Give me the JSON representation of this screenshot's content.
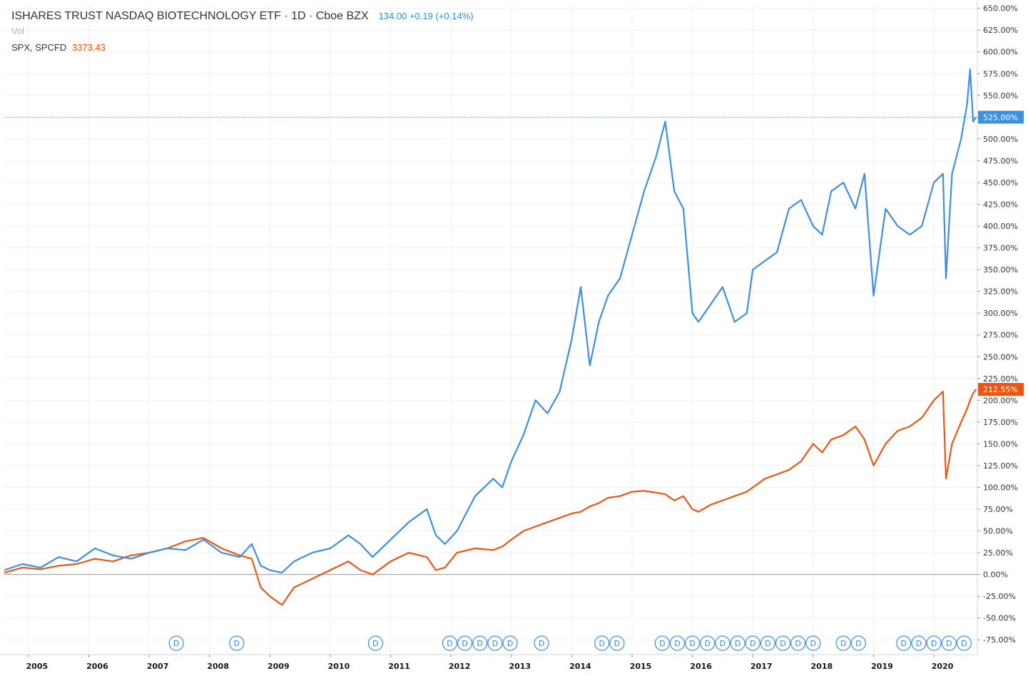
{
  "legend": {
    "title": "ISHARES TRUST NASDAQ BIOTECHNOLOGY ETF · 1D · Cboe BZX",
    "price": "134.00",
    "change": "+0.19 (+0.14%)",
    "vol_label": "Vol",
    "compare_symbol": "SPX, SPCFD",
    "compare_value": "3373.43"
  },
  "colors": {
    "ibb": "#3d8fe0",
    "spx": "#ef5412",
    "grid": "#eef0f3",
    "axis": "#c8cbd3"
  },
  "chart_data": {
    "type": "line",
    "title": "ISHARES TRUST NASDAQ BIOTECHNOLOGY ETF",
    "xlabel": "",
    "ylabel": "",
    "ylim": [
      -92,
      653
    ],
    "xlim": [
      2004.6,
      2020.72
    ],
    "y_ticks": [
      650,
      625,
      600,
      575,
      550,
      525,
      500,
      475,
      450,
      425,
      400,
      375,
      350,
      325,
      300,
      275,
      250,
      225,
      200,
      175,
      150,
      125,
      100,
      75,
      50,
      25,
      0,
      -25,
      -50,
      -75
    ],
    "y_tick_labels": [
      "650.00%",
      "625.00%",
      "600.00%",
      "575.00%",
      "550.00%",
      "525.00%",
      "500.00%",
      "475.00%",
      "450.00%",
      "425.00%",
      "400.00%",
      "375.00%",
      "350.00%",
      "325.00%",
      "300.00%",
      "275.00%",
      "250.00%",
      "225.00%",
      "200.00%",
      "175.00%",
      "150.00%",
      "125.00%",
      "100.00%",
      "75.00%",
      "50.00%",
      "25.00%",
      "0.00%",
      "-25.00%",
      "-50.00%",
      "-75.00%"
    ],
    "x_ticks": [
      2005,
      2006,
      2007,
      2008,
      2009,
      2010,
      2011,
      2012,
      2013,
      2014,
      2015,
      2016,
      2017,
      2018,
      2019,
      2020
    ],
    "x_tick_labels": [
      "2005",
      "2006",
      "2007",
      "2008",
      "2009",
      "2010",
      "2011",
      "2012",
      "2013",
      "2014",
      "2015",
      "2016",
      "2017",
      "2018",
      "2019",
      "2020"
    ],
    "series": [
      {
        "name": "ISHARES TRUST NASDAQ BIOTECHNOLOGY ETF",
        "last_label": "525.00%",
        "last_value": 525,
        "x": [
          2004.6,
          2004.9,
          2005.2,
          2005.5,
          2005.8,
          2006.1,
          2006.4,
          2006.7,
          2007.0,
          2007.3,
          2007.6,
          2007.9,
          2008.2,
          2008.5,
          2008.7,
          2008.85,
          2009.0,
          2009.2,
          2009.4,
          2009.7,
          2010.0,
          2010.3,
          2010.5,
          2010.7,
          2011.0,
          2011.3,
          2011.6,
          2011.75,
          2011.9,
          2012.1,
          2012.4,
          2012.7,
          2012.85,
          2013.0,
          2013.2,
          2013.4,
          2013.6,
          2013.8,
          2014.0,
          2014.15,
          2014.3,
          2014.45,
          2014.6,
          2014.8,
          2015.0,
          2015.2,
          2015.4,
          2015.55,
          2015.7,
          2015.85,
          2016.0,
          2016.1,
          2016.3,
          2016.5,
          2016.7,
          2016.9,
          2017.0,
          2017.2,
          2017.4,
          2017.6,
          2017.8,
          2018.0,
          2018.15,
          2018.3,
          2018.5,
          2018.7,
          2018.85,
          2019.0,
          2019.2,
          2019.4,
          2019.6,
          2019.8,
          2020.0,
          2020.15,
          2020.2,
          2020.3,
          2020.45,
          2020.55,
          2020.6,
          2020.65,
          2020.7
        ],
        "values": [
          5,
          12,
          8,
          20,
          15,
          30,
          22,
          18,
          25,
          30,
          28,
          40,
          25,
          20,
          35,
          10,
          5,
          2,
          15,
          25,
          30,
          45,
          35,
          20,
          40,
          60,
          75,
          45,
          35,
          50,
          90,
          110,
          100,
          130,
          160,
          200,
          185,
          210,
          270,
          330,
          240,
          290,
          320,
          340,
          390,
          440,
          480,
          520,
          440,
          420,
          300,
          290,
          310,
          330,
          290,
          300,
          350,
          360,
          370,
          420,
          430,
          400,
          390,
          440,
          450,
          420,
          460,
          320,
          420,
          400,
          390,
          400,
          450,
          460,
          340,
          460,
          500,
          540,
          580,
          520,
          525
        ]
      },
      {
        "name": "SPX, SPCFD",
        "last_label": "212.55%",
        "last_value": 212.55,
        "x": [
          2004.6,
          2004.9,
          2005.2,
          2005.5,
          2005.8,
          2006.1,
          2006.4,
          2006.7,
          2007.0,
          2007.3,
          2007.6,
          2007.9,
          2008.2,
          2008.5,
          2008.7,
          2008.85,
          2009.0,
          2009.2,
          2009.4,
          2009.7,
          2010.0,
          2010.3,
          2010.5,
          2010.7,
          2011.0,
          2011.3,
          2011.6,
          2011.75,
          2011.9,
          2012.1,
          2012.4,
          2012.7,
          2012.85,
          2013.0,
          2013.2,
          2013.4,
          2013.6,
          2013.8,
          2014.0,
          2014.15,
          2014.3,
          2014.45,
          2014.6,
          2014.8,
          2015.0,
          2015.2,
          2015.4,
          2015.55,
          2015.7,
          2015.85,
          2016.0,
          2016.1,
          2016.3,
          2016.5,
          2016.7,
          2016.9,
          2017.0,
          2017.2,
          2017.4,
          2017.6,
          2017.8,
          2018.0,
          2018.15,
          2018.3,
          2018.5,
          2018.7,
          2018.85,
          2019.0,
          2019.2,
          2019.4,
          2019.6,
          2019.8,
          2020.0,
          2020.15,
          2020.2,
          2020.3,
          2020.45,
          2020.55,
          2020.6,
          2020.65,
          2020.7
        ],
        "values": [
          2,
          8,
          6,
          10,
          12,
          18,
          15,
          22,
          25,
          30,
          38,
          42,
          30,
          22,
          18,
          -15,
          -25,
          -35,
          -15,
          -5,
          5,
          15,
          5,
          0,
          15,
          25,
          20,
          5,
          8,
          25,
          30,
          28,
          32,
          40,
          50,
          55,
          60,
          65,
          70,
          72,
          78,
          82,
          88,
          90,
          95,
          96,
          94,
          92,
          85,
          90,
          75,
          72,
          80,
          85,
          90,
          95,
          100,
          110,
          115,
          120,
          130,
          150,
          140,
          155,
          160,
          170,
          155,
          125,
          150,
          165,
          170,
          180,
          200,
          210,
          110,
          150,
          175,
          190,
          200,
          208,
          212.55
        ]
      }
    ],
    "dividend_markers": {
      "label": "D",
      "x": [
        2007.45,
        2008.45,
        2010.75,
        2011.98,
        2012.23,
        2012.48,
        2012.73,
        2012.98,
        2013.5,
        2014.5,
        2014.75,
        2015.5,
        2015.75,
        2016.0,
        2016.25,
        2016.5,
        2016.75,
        2017.0,
        2017.25,
        2017.5,
        2017.75,
        2018.0,
        2018.5,
        2018.75,
        2019.5,
        2019.75,
        2020.0,
        2020.25,
        2020.5
      ]
    }
  }
}
